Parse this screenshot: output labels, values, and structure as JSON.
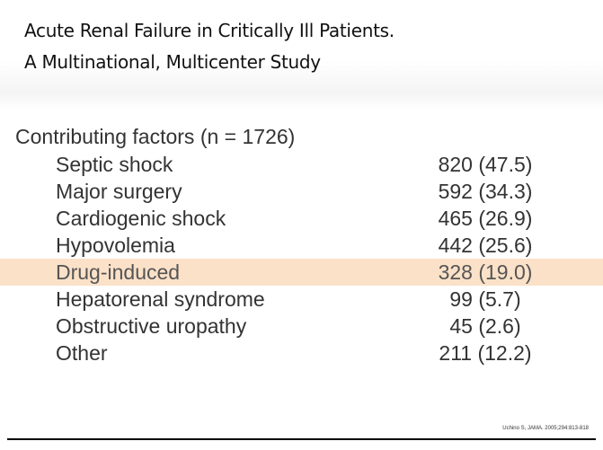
{
  "slide": {
    "title_line_1": "Acute Renal Failure in Critically Ill Patients.",
    "title_line_2": "A Multinational, Multicenter Study",
    "table_heading": "Contributing factors (n = 1726)",
    "factors": [
      {
        "label": "Septic shock",
        "value": "820 (47.5)"
      },
      {
        "label": "Major surgery",
        "value": "592 (34.3)"
      },
      {
        "label": "Cardiogenic shock",
        "value": "465 (26.9)"
      },
      {
        "label": "Hypovolemia",
        "value": "442 (25.6)"
      },
      {
        "label": "Drug-induced",
        "value": "328 (19.0)"
      },
      {
        "label": "Hepatorenal syndrome",
        "value": "99 (5.7)"
      },
      {
        "label": "Obstructive uropathy",
        "value": "45 (2.6)"
      },
      {
        "label": "Other",
        "value": "211 (12.2)"
      }
    ],
    "highlight_color": "#fae1c8",
    "citation": "Uchino S, JAMA. 2005;294:813-818"
  }
}
